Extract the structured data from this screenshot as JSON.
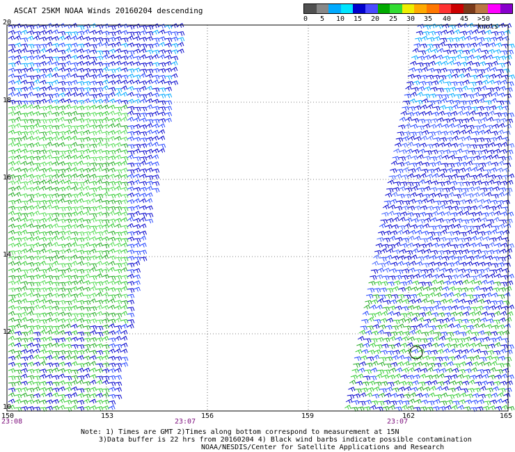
{
  "title": "ASCAT 25KM NOAA Winds 20160204 descending",
  "legend": {
    "colors": [
      "#505050",
      "#888888",
      "#00aaff",
      "#00e5ff",
      "#0000cc",
      "#4a4aff",
      "#00aa00",
      "#33dd33",
      "#eeee00",
      "#ffaa00",
      "#ff7700",
      "#ff3333",
      "#cc0000",
      "#7a3a1a",
      "#bb7744",
      "#ff00ff",
      "#8800cc"
    ],
    "labels": [
      "0",
      "5",
      "10",
      "15",
      "20",
      "25",
      "30",
      "35",
      "40",
      "45",
      ">50 knots"
    ]
  },
  "lat_labels": [
    "20",
    "18",
    "16",
    "14",
    "12",
    "10"
  ],
  "lon_labels": [
    "150",
    "153",
    "156",
    "159",
    "162",
    "165"
  ],
  "times": [
    "23:08",
    "23:07",
    "23:07"
  ],
  "notes": {
    "line1": "Note: 1) Times are GMT 2)Times along bottom correspond to measurement at 15N",
    "line2": "3)Data buffer is 22 hrs from 20160204 4) Black wind barbs indicate possible contamination",
    "line3": "NOAA/NESDIS/Center for Satellite Applications and Research"
  }
}
